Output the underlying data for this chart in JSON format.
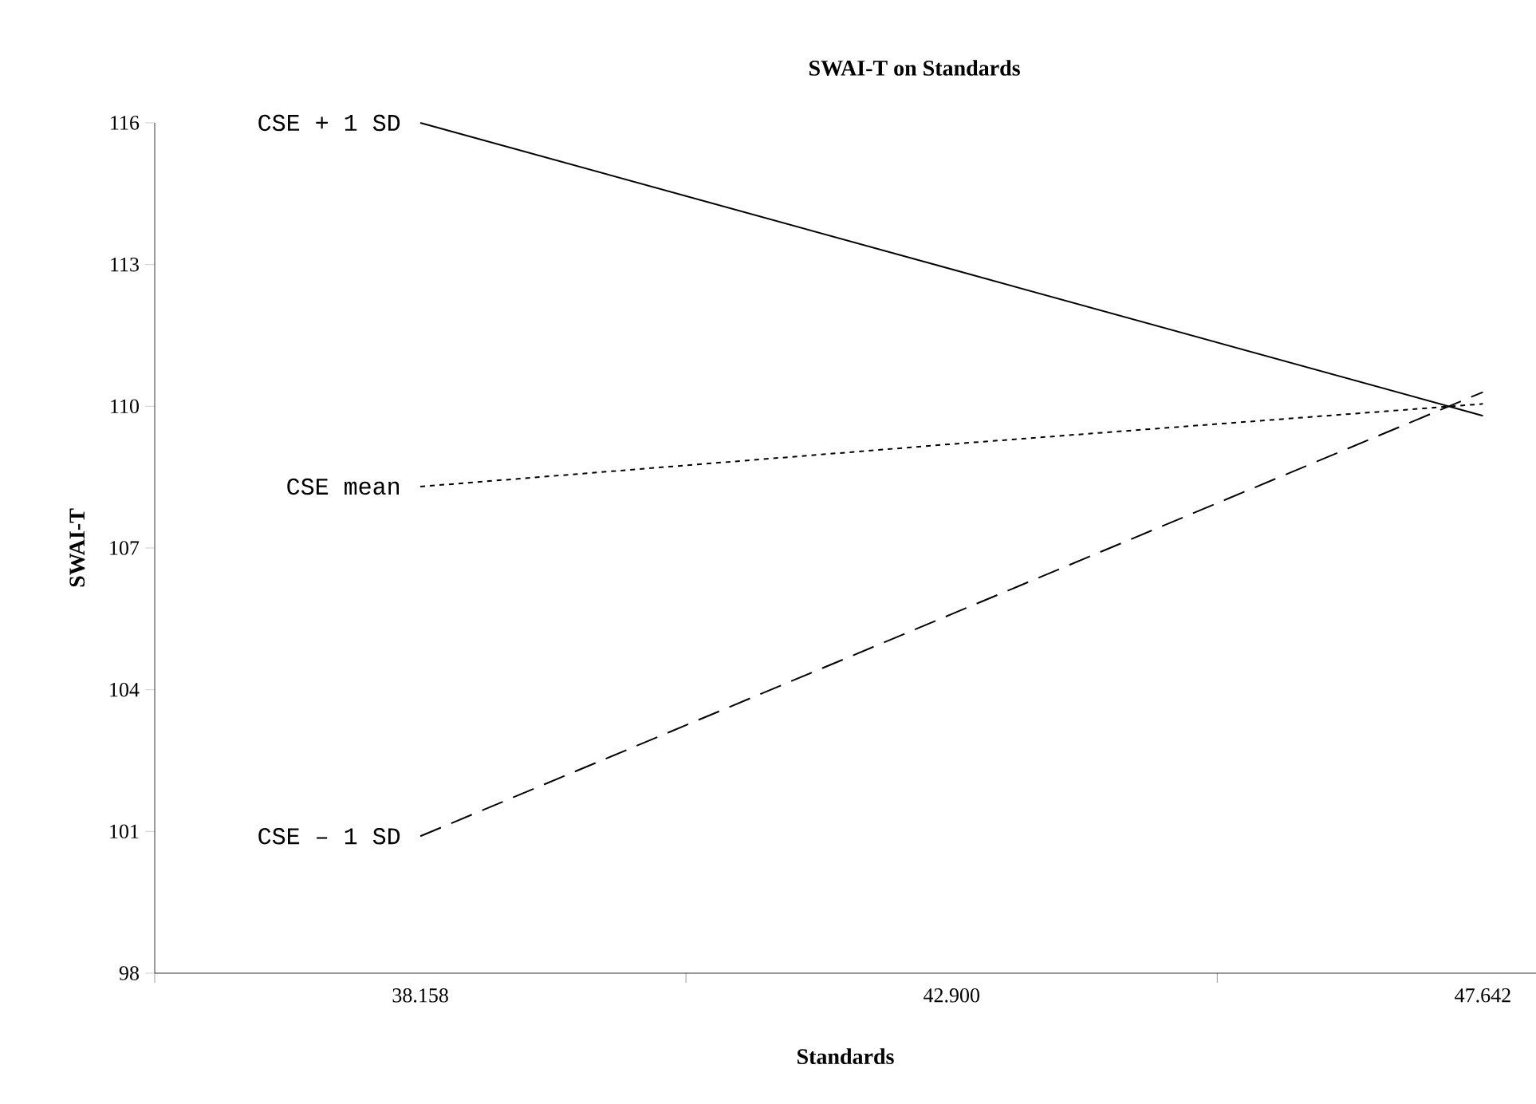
{
  "chart_data": {
    "type": "line",
    "title": "SWAI-T on Standards",
    "xlabel": "Standards",
    "ylabel": "SWAI-T",
    "categories": [
      "38.158",
      "42.900",
      "47.642"
    ],
    "series": [
      {
        "name": "CSE + 1 SD",
        "color": "#000000",
        "line_style": "solid",
        "values": [
          116.0,
          112.9,
          109.8
        ]
      },
      {
        "name": "CSE mean",
        "color": "#000000",
        "line_style": "dotted",
        "values": [
          108.3,
          109.2,
          110.05
        ]
      },
      {
        "name": "CSE – 1 SD",
        "color": "#000000",
        "line_style": "dashed",
        "values": [
          100.9,
          105.6,
          110.3
        ]
      }
    ],
    "ylim": [
      98,
      116
    ],
    "yticks": [
      98,
      101,
      104,
      107,
      110,
      113,
      116
    ],
    "grid": false,
    "legend": false,
    "marker": "none"
  }
}
